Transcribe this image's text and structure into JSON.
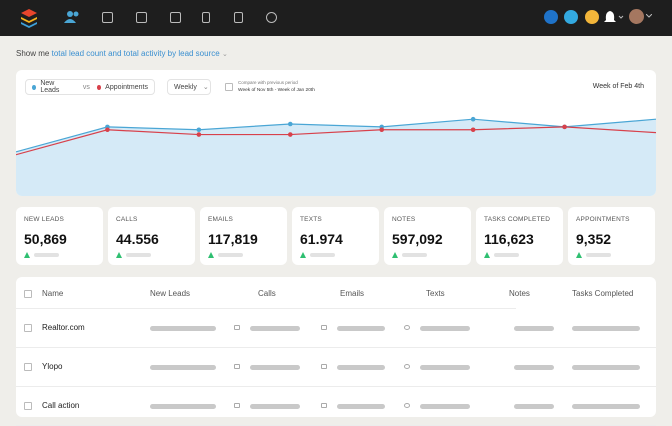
{
  "filter": {
    "prefix": "Show me",
    "selection": "total lead count and total activity by lead source"
  },
  "chart_panel": {
    "legend": {
      "first": "New Leads",
      "vs": "vs",
      "second": "Appointments"
    },
    "interval": "Weekly",
    "compare": {
      "label": "Compare with previous period",
      "range": "Week of Nov 5th - Week of Jan 20th"
    },
    "current_week": "Week of Feb 4th"
  },
  "chart_data": {
    "type": "line",
    "ylim": [
      0,
      100
    ],
    "series": [
      {
        "name": "New Leads",
        "color": "#4aa6d5",
        "values": [
          46,
          72,
          69,
          75,
          72,
          80,
          72,
          80
        ]
      },
      {
        "name": "Appointments",
        "color": "#d8414b",
        "values": [
          43,
          69,
          64,
          64,
          69,
          69,
          72,
          66
        ]
      }
    ]
  },
  "stats": [
    {
      "label": "NEW LEADS",
      "value": "50,869"
    },
    {
      "label": "CALLS",
      "value": "44.556"
    },
    {
      "label": "EMAILS",
      "value": "117,819"
    },
    {
      "label": "TEXTS",
      "value": "61.974"
    },
    {
      "label": "NOTES",
      "value": "597,092"
    },
    {
      "label": "TASKS COMPLETED",
      "value": "116,623"
    },
    {
      "label": "APPOINTMENTS",
      "value": "9,352"
    }
  ],
  "table": {
    "columns": [
      "Name",
      "New Leads",
      "Calls",
      "Emails",
      "Texts",
      "Notes",
      "Tasks Completed"
    ],
    "rows": [
      "Realtor.com",
      "Ylopo",
      "Call action"
    ]
  }
}
